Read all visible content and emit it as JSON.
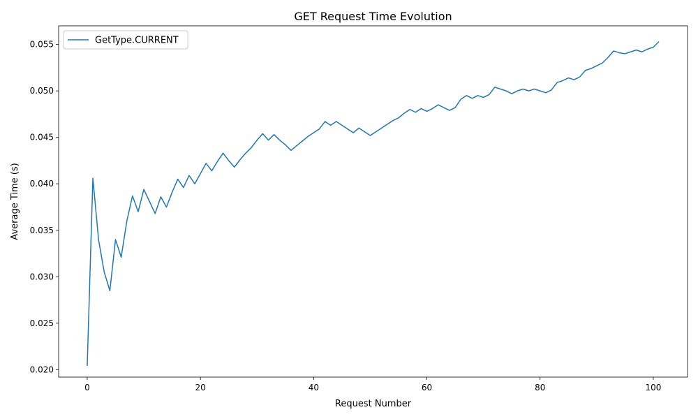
{
  "chart_data": {
    "type": "line",
    "title": "GET Request Time Evolution",
    "xlabel": "Request Number",
    "ylabel": "Average Time (s)",
    "xlim": [
      -5.05,
      106.05
    ],
    "ylim": [
      0.0192,
      0.057
    ],
    "xticks": [
      0,
      20,
      40,
      60,
      80,
      100
    ],
    "yticks": [
      0.02,
      0.025,
      0.03,
      0.035,
      0.04,
      0.045,
      0.05,
      0.055
    ],
    "xtick_labels": [
      "0",
      "20",
      "40",
      "60",
      "80",
      "100"
    ],
    "ytick_labels": [
      "0.020",
      "0.025",
      "0.030",
      "0.035",
      "0.040",
      "0.045",
      "0.050",
      "0.055"
    ],
    "grid": false,
    "legend_position": "upper-left",
    "series": [
      {
        "name": "GetType.CURRENT",
        "color": "#1f77b4",
        "x": [
          0,
          1,
          2,
          3,
          4,
          5,
          6,
          7,
          8,
          9,
          10,
          11,
          12,
          13,
          14,
          15,
          16,
          17,
          18,
          19,
          20,
          21,
          22,
          23,
          24,
          25,
          26,
          27,
          28,
          29,
          30,
          31,
          32,
          33,
          34,
          35,
          36,
          37,
          38,
          39,
          40,
          41,
          42,
          43,
          44,
          45,
          46,
          47,
          48,
          49,
          50,
          51,
          52,
          53,
          54,
          55,
          56,
          57,
          58,
          59,
          60,
          61,
          62,
          63,
          64,
          65,
          66,
          67,
          68,
          69,
          70,
          71,
          72,
          73,
          74,
          75,
          76,
          77,
          78,
          79,
          80,
          81,
          82,
          83,
          84,
          85,
          86,
          87,
          88,
          89,
          90,
          91,
          92,
          93,
          94,
          95,
          96,
          97,
          98,
          99,
          100,
          101
        ],
        "values": [
          0.0204,
          0.0406,
          0.034,
          0.0305,
          0.0285,
          0.034,
          0.0321,
          0.036,
          0.0387,
          0.037,
          0.0394,
          0.0381,
          0.0368,
          0.0386,
          0.0375,
          0.0391,
          0.0405,
          0.0396,
          0.0409,
          0.04,
          0.0411,
          0.0422,
          0.0414,
          0.0424,
          0.0433,
          0.0425,
          0.0418,
          0.0426,
          0.0433,
          0.0439,
          0.0447,
          0.0454,
          0.0447,
          0.0453,
          0.0447,
          0.0442,
          0.0436,
          0.0441,
          0.0446,
          0.0451,
          0.0455,
          0.0459,
          0.0467,
          0.0463,
          0.0467,
          0.0463,
          0.0459,
          0.0455,
          0.046,
          0.0456,
          0.0452,
          0.0456,
          0.046,
          0.0464,
          0.0468,
          0.0471,
          0.0476,
          0.048,
          0.0477,
          0.0481,
          0.0478,
          0.0481,
          0.0485,
          0.0482,
          0.0479,
          0.0482,
          0.0491,
          0.0495,
          0.0492,
          0.0495,
          0.0493,
          0.0496,
          0.0504,
          0.0502,
          0.05,
          0.0497,
          0.05,
          0.0502,
          0.05,
          0.0502,
          0.05,
          0.0498,
          0.0501,
          0.0509,
          0.0511,
          0.0514,
          0.0512,
          0.0515,
          0.0522,
          0.0524,
          0.0527,
          0.053,
          0.0536,
          0.0543,
          0.0541,
          0.054,
          0.0542,
          0.0544,
          0.0542,
          0.0545,
          0.0547,
          0.0553
        ]
      }
    ]
  }
}
